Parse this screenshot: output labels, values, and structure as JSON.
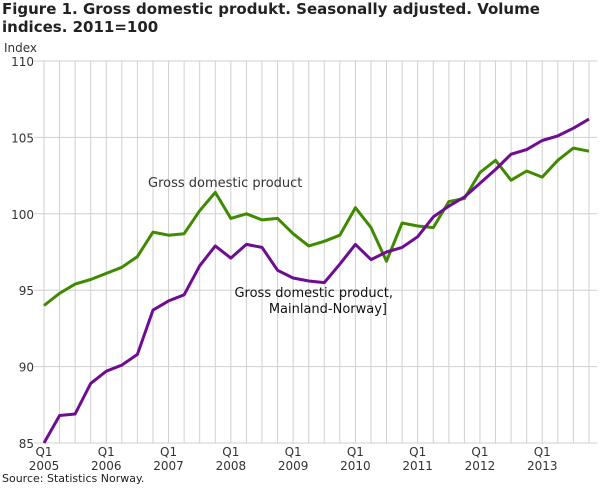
{
  "chart_data": {
    "type": "line",
    "title": "Figure 1. Gross domestic produkt. Seasonally adjusted. Volume indices. 2011=100",
    "ylabel": "Index",
    "xlabel": "",
    "ylim": [
      85,
      110
    ],
    "yticks": [
      "85",
      "90",
      "95",
      "100",
      "105",
      "110"
    ],
    "xticks": [
      {
        "q": "Q1",
        "year": "2005"
      },
      {
        "q": "Q1",
        "year": "2006"
      },
      {
        "q": "Q1",
        "year": "2007"
      },
      {
        "q": "Q1",
        "year": "2008"
      },
      {
        "q": "Q1",
        "year": "2009"
      },
      {
        "q": "Q1",
        "year": "2010"
      },
      {
        "q": "Q1",
        "year": "2011"
      },
      {
        "q": "Q1",
        "year": "2012"
      },
      {
        "q": "Q1",
        "year": "2013"
      }
    ],
    "x_start": "2005Q1",
    "x_end": "2013Q4",
    "grid": true,
    "series": [
      {
        "name": "Gross domestic product",
        "label_lines": [
          "Gross domestic product"
        ],
        "color": "#3f8a00",
        "values": [
          94.0,
          94.8,
          95.4,
          95.7,
          96.1,
          96.5,
          97.2,
          98.8,
          98.6,
          98.7,
          100.2,
          101.4,
          99.7,
          100.0,
          99.6,
          99.7,
          98.7,
          97.9,
          98.2,
          98.6,
          100.4,
          99.1,
          96.9,
          99.4,
          99.2,
          99.1,
          100.8,
          101.0,
          102.7,
          103.5,
          102.2,
          102.8,
          102.4,
          103.5,
          104.3,
          104.1
        ]
      },
      {
        "name": "Gross domestic product, Mainland-Norway]",
        "label_lines": [
          "Gross domestic product,",
          "Mainland-Norway]"
        ],
        "color": "#6e0d91",
        "values": [
          85.0,
          86.8,
          86.9,
          88.9,
          89.7,
          90.1,
          90.8,
          93.7,
          94.3,
          94.7,
          96.6,
          97.9,
          97.1,
          98.0,
          97.8,
          96.3,
          95.8,
          95.6,
          95.5,
          96.7,
          98.0,
          97.0,
          97.5,
          97.8,
          98.5,
          99.8,
          100.5,
          101.1,
          102.0,
          102.9,
          103.9,
          104.2,
          104.8,
          105.1,
          105.6,
          106.2
        ]
      }
    ],
    "source": "Source: Statistics Norway."
  }
}
